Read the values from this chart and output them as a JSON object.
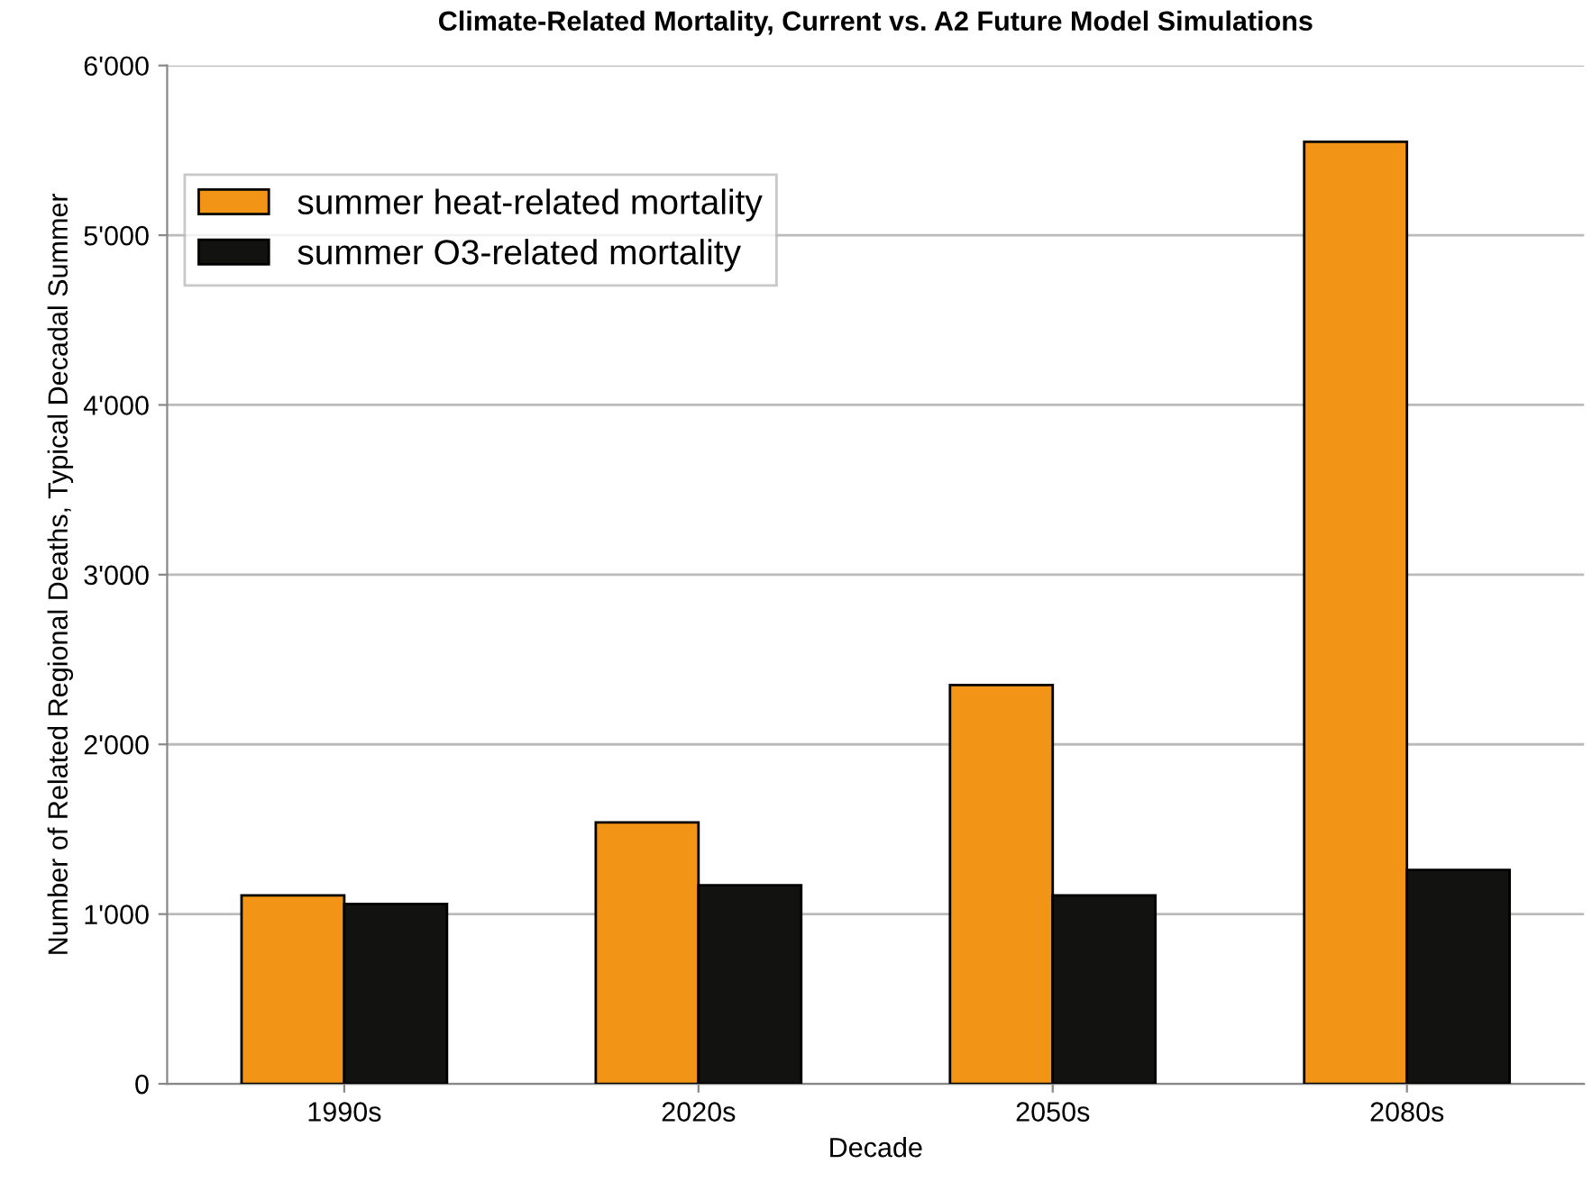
{
  "chart_data": {
    "type": "bar",
    "title": "Climate-Related Mortality, Current vs. A2 Future Model Simulations",
    "xlabel": "Decade",
    "ylabel": "Number of Related Regional Deaths, Typical Decadal Summer",
    "categories": [
      "1990s",
      "2020s",
      "2050s",
      "2080s"
    ],
    "series": [
      {
        "name": "summer heat-related mortality",
        "color": "#f29416",
        "values": [
          1110,
          1540,
          2350,
          5550
        ]
      },
      {
        "name": "summer O3-related mortality",
        "color": "#121210",
        "values": [
          1060,
          1170,
          1110,
          1260
        ]
      }
    ],
    "ylim": [
      0,
      6000
    ],
    "yticks": [
      0,
      {
        "value": 1000,
        "label": "1'000"
      },
      {
        "value": 2000,
        "label": "2'000"
      },
      {
        "value": 3000,
        "label": "3'000"
      },
      {
        "value": 4000,
        "label": "4'000"
      },
      {
        "value": 5000,
        "label": "5'000"
      },
      {
        "value": 6000,
        "label": "6'000"
      }
    ],
    "grid": "y",
    "legend": "top left"
  }
}
